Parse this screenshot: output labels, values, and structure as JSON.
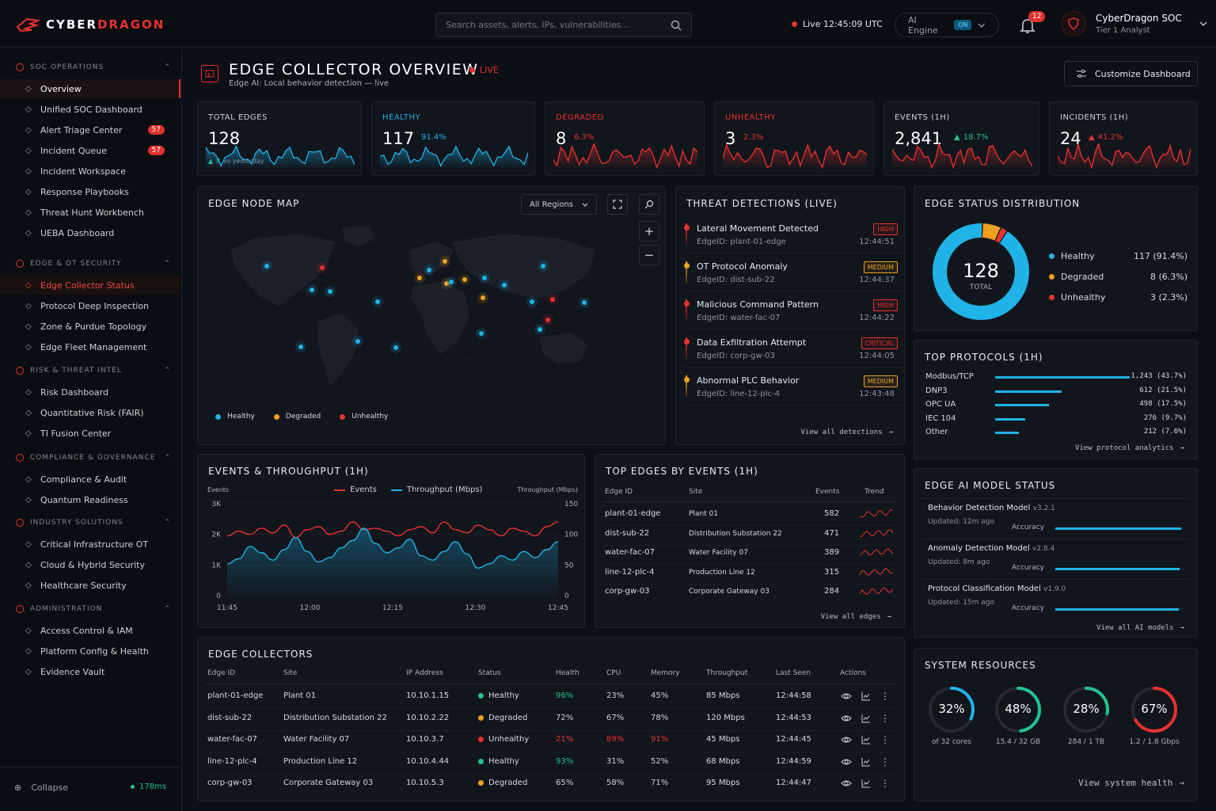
{
  "app": {
    "brand_a": "CYBER",
    "brand_b": "DRAGON"
  },
  "header": {
    "search_placeholder": "Search assets, alerts, IPs, vulnerabilities...",
    "live_clock": "Live 12:45:09 UTC",
    "ai_engine": "AI Engine",
    "ai_chip": "ON",
    "notifications": "12",
    "user_name": "CyberDragon SOC",
    "user_role": "Tier 1 Analyst"
  },
  "sidebar": {
    "sections": [
      {
        "title": "SOC OPERATIONS",
        "items": [
          {
            "label": "Overview",
            "icon": "target-icon"
          },
          {
            "label": "Unified SOC Dashboard",
            "icon": "grid-icon"
          },
          {
            "label": "Alert Triage Center",
            "icon": "alert-icon",
            "badge": "57"
          },
          {
            "label": "Incident Queue",
            "icon": "queue-icon",
            "badge": "57"
          },
          {
            "label": "Incident Workspace",
            "icon": "folder-icon"
          },
          {
            "label": "Response Playbooks",
            "icon": "play-icon"
          },
          {
            "label": "Threat Hunt Workbench",
            "icon": "crosshair-icon"
          },
          {
            "label": "UEBA Dashboard",
            "icon": "user-icon"
          }
        ]
      },
      {
        "title": "EDGE & OT SECURITY",
        "items": [
          {
            "label": "Edge Collector Status",
            "icon": "nodes-icon"
          },
          {
            "label": "Protocol Deep Inspection",
            "icon": "inspect-icon"
          },
          {
            "label": "Zone & Purdue Topology",
            "icon": "topology-icon"
          },
          {
            "label": "Edge Fleet Management",
            "icon": "fleet-icon"
          }
        ]
      },
      {
        "title": "RISK & THREAT INTEL",
        "items": [
          {
            "label": "Risk Dashboard",
            "icon": "chart-icon"
          },
          {
            "label": "Quantitative Risk (FAIR)",
            "icon": "calc-icon"
          },
          {
            "label": "TI Fusion Center",
            "icon": "fusion-icon"
          }
        ]
      },
      {
        "title": "COMPLIANCE & GOVERNANCE",
        "items": [
          {
            "label": "Compliance & Audit",
            "icon": "clipboard-icon"
          },
          {
            "label": "Quantum Readiness",
            "icon": "atom-icon"
          }
        ]
      },
      {
        "title": "INDUSTRY SOLUTIONS",
        "items": [
          {
            "label": "Critical Infrastructure OT",
            "icon": "factory-icon"
          },
          {
            "label": "Cloud & Hybrid Security",
            "icon": "cloud-icon"
          },
          {
            "label": "Healthcare Security",
            "icon": "heart-icon"
          }
        ]
      },
      {
        "title": "ADMINISTRATION",
        "items": [
          {
            "label": "Access Control & IAM",
            "icon": "key-icon"
          },
          {
            "label": "Platform Config & Health",
            "icon": "pulse-icon"
          },
          {
            "label": "Evidence Vault",
            "icon": "vault-icon"
          }
        ]
      }
    ],
    "collapse": "Collapse",
    "latency": "178ms"
  },
  "page": {
    "title": "EDGE COLLECTOR OVERVIEW",
    "live": "LIVE",
    "subtitle": "Edge AI: Local behavior detection — live",
    "customize": "Customize Dashboard"
  },
  "kpis": [
    {
      "label": "TOTAL EDGES",
      "value": "128",
      "change": "8",
      "note": "vs yesterday",
      "color": "#1fb3e8",
      "label_color": "#cbd1da"
    },
    {
      "label": "HEALTHY",
      "value": "117",
      "change": "91.4%",
      "color": "#1fb3e8",
      "label_color": "#1fb3e8"
    },
    {
      "label": "DEGRADED",
      "value": "8",
      "change": "6.3%",
      "color": "#e8322e",
      "label_color": "#e8322e"
    },
    {
      "label": "UNHEALTHY",
      "value": "3",
      "change": "2.3%",
      "color": "#e8322e",
      "label_color": "#e8322e"
    },
    {
      "label": "EVENTS (1H)",
      "value": "2,841",
      "change": "18.7%",
      "color": "#e8322e",
      "label_color": "#cbd1da",
      "up_color": "#22c38e"
    },
    {
      "label": "INCIDENTS (1H)",
      "value": "24",
      "change": "41.2%",
      "color": "#e8322e",
      "label_color": "#cbd1da",
      "up_color": "#e8322e"
    }
  ],
  "map": {
    "title": "EDGE NODE MAP",
    "region": "All Regions",
    "legend": [
      "Healthy",
      "Degraded",
      "Unhealthy"
    ]
  },
  "threats": {
    "title": "THREAT DETECTIONS (LIVE)",
    "items": [
      {
        "title": "Lateral Movement Detected",
        "edge": "EdgeID: plant-01-edge",
        "time": "12:44:51",
        "sev": "HIGH",
        "color": "#e8322e"
      },
      {
        "title": "OT Protocol Anomaly",
        "edge": "EdgeID: dist-sub-22",
        "time": "12:44:37",
        "sev": "MEDIUM",
        "color": "#f0a020"
      },
      {
        "title": "Malicious Command Pattern",
        "edge": "EdgeID: water-fac-07",
        "time": "12:44:22",
        "sev": "HIGH",
        "color": "#e8322e"
      },
      {
        "title": "Data Exfiltration Attempt",
        "edge": "EdgeID: corp-gw-03",
        "time": "12:44:05",
        "sev": "CRITICAL",
        "color": "#e8322e"
      },
      {
        "title": "Abnormal PLC Behavior",
        "edge": "EdgeID: line-12-plc-4",
        "time": "12:43:48",
        "sev": "MEDIUM",
        "color": "#f0a020"
      }
    ],
    "link": "View all detections"
  },
  "distribution": {
    "title": "EDGE STATUS DISTRIBUTION",
    "total": "128",
    "total_label": "TOTAL",
    "items": [
      {
        "label": "Healthy",
        "value": "117 (91.4%)",
        "color": "#1fb3e8"
      },
      {
        "label": "Degraded",
        "value": "8 (6.3%)",
        "color": "#f0a020"
      },
      {
        "label": "Unhealthy",
        "value": "3 (2.3%)",
        "color": "#e8322e"
      }
    ]
  },
  "protocols": {
    "title": "TOP PROTOCOLS (1H)",
    "items": [
      {
        "label": "Modbus/TCP",
        "value": "1,243 (43.7%)",
        "pct": 43.7
      },
      {
        "label": "DNP3",
        "value": "612 (21.5%)",
        "pct": 21.5
      },
      {
        "label": "OPC UA",
        "value": "498 (17.5%)",
        "pct": 17.5
      },
      {
        "label": "IEC 104",
        "value": "276 (9.7%)",
        "pct": 9.7
      },
      {
        "label": "Other",
        "value": "212 (7.6%)",
        "pct": 7.6
      }
    ],
    "link": "View protocol analytics"
  },
  "events_chart": {
    "title": "EVENTS & THROUGHPUT (1H)",
    "left_axis_label": "Events",
    "right_axis_label": "Throughput (Mbps)",
    "legend_events": "Events",
    "legend_throughput": "Throughput (Mbps)"
  },
  "chart_data": {
    "type": "line",
    "title": "EVENTS & THROUGHPUT (1H)",
    "x_ticks": [
      "11:45",
      "12:00",
      "12:15",
      "12:30",
      "12:45"
    ],
    "y_left_ticks": [
      "0",
      "1K",
      "2K",
      "3K"
    ],
    "y_right_ticks": [
      "0",
      "50",
      "100",
      "150"
    ],
    "ylim_left": [
      0,
      3000
    ],
    "ylim_right": [
      0,
      150
    ],
    "series": [
      {
        "name": "Events",
        "axis": "left",
        "color": "#e8322e",
        "values": [
          1950,
          2100,
          2000,
          2200,
          2050,
          2300,
          1900,
          2150,
          2250,
          2000,
          2100,
          2400,
          2150,
          2200,
          2100,
          1950,
          2150,
          2250,
          2050,
          2400,
          2150,
          2050,
          2300,
          2150,
          1950,
          2200,
          2100,
          1950,
          2250,
          2400
        ]
      },
      {
        "name": "Throughput (Mbps)",
        "axis": "right",
        "color": "#1fb3e8",
        "values": [
          52,
          60,
          80,
          70,
          58,
          75,
          95,
          72,
          55,
          62,
          78,
          90,
          110,
          85,
          70,
          78,
          92,
          65,
          58,
          72,
          88,
          68,
          45,
          52,
          65,
          58,
          72,
          62,
          75,
          88
        ]
      }
    ]
  },
  "top_edges": {
    "title": "TOP EDGES BY EVENTS (1H)",
    "headers": [
      "Edge ID",
      "Site",
      "Events",
      "Trend"
    ],
    "rows": [
      {
        "id": "plant-01-edge",
        "site": "Plant 01",
        "events": "582"
      },
      {
        "id": "dist-sub-22",
        "site": "Distribution Substation 22",
        "events": "471"
      },
      {
        "id": "water-fac-07",
        "site": "Water Facility 07",
        "events": "389"
      },
      {
        "id": "line-12-plc-4",
        "site": "Production Line 12",
        "events": "315"
      },
      {
        "id": "corp-gw-03",
        "site": "Corporate Gateway 03",
        "events": "284"
      }
    ],
    "link": "View all edges"
  },
  "ai_models": {
    "title": "EDGE AI MODEL STATUS",
    "items": [
      {
        "name": "Behavior Detection Model",
        "version": "v3.2.1",
        "updated": "Updated: 12m ago",
        "accuracy_label": "Accuracy"
      },
      {
        "name": "Anomaly Detection Model",
        "version": "v2.8.4",
        "updated": "Updated: 8m ago",
        "accuracy_label": "Accuracy"
      },
      {
        "name": "Protocol Classification Model",
        "version": "v1.9.0",
        "updated": "Updated: 15m ago",
        "accuracy_label": "Accuracy"
      }
    ],
    "link": "View all AI models"
  },
  "collectors": {
    "title": "EDGE COLLECTORS",
    "headers": [
      "Edge ID",
      "Site",
      "IP Address",
      "Status",
      "Health",
      "CPU",
      "Memory",
      "Throughput",
      "Last Seen",
      "Actions"
    ],
    "rows": [
      {
        "id": "plant-01-edge",
        "site": "Plant 01",
        "ip": "10.10.1.15",
        "status": "Healthy",
        "status_color": "#22c38e",
        "health": "96%",
        "health_color": "#22c38e",
        "cpu": "23%",
        "cpu_color": "#cbd1da",
        "mem": "45%",
        "mem_color": "#cbd1da",
        "tp": "85 Mbps",
        "seen": "12:44:58"
      },
      {
        "id": "dist-sub-22",
        "site": "Distribution Substation 22",
        "ip": "10.10.2.22",
        "status": "Degraded",
        "status_color": "#f0a020",
        "health": "72%",
        "health_color": "#cbd1da",
        "cpu": "67%",
        "cpu_color": "#cbd1da",
        "mem": "78%",
        "mem_color": "#cbd1da",
        "tp": "120 Mbps",
        "seen": "12:44:53"
      },
      {
        "id": "water-fac-07",
        "site": "Water Facility 07",
        "ip": "10.10.3.7",
        "status": "Unhealthy",
        "status_color": "#e8322e",
        "health": "21%",
        "health_color": "#e8322e",
        "cpu": "89%",
        "cpu_color": "#e8322e",
        "mem": "91%",
        "mem_color": "#e8322e",
        "tp": "45 Mbps",
        "seen": "12:44:45"
      },
      {
        "id": "line-12-plc-4",
        "site": "Production Line 12",
        "ip": "10.10.4.44",
        "status": "Healthy",
        "status_color": "#22c38e",
        "health": "93%",
        "health_color": "#22c38e",
        "cpu": "31%",
        "cpu_color": "#cbd1da",
        "mem": "52%",
        "mem_color": "#cbd1da",
        "tp": "68 Mbps",
        "seen": "12:44:59"
      },
      {
        "id": "corp-gw-03",
        "site": "Corporate Gateway 03",
        "ip": "10.10.5.3",
        "status": "Degraded",
        "status_color": "#f0a020",
        "health": "65%",
        "health_color": "#cbd1da",
        "cpu": "58%",
        "cpu_color": "#cbd1da",
        "mem": "71%",
        "mem_color": "#cbd1da",
        "tp": "95 Mbps",
        "seen": "12:44:47"
      }
    ]
  },
  "resources": {
    "title": "SYSTEM RESOURCES",
    "items": [
      {
        "value": "32%",
        "pct": 32,
        "sub": "of 32 cores",
        "color": "#1fb3e8"
      },
      {
        "value": "48%",
        "pct": 48,
        "sub": "15.4 / 32 GB",
        "color": "#22c38e"
      },
      {
        "value": "28%",
        "pct": 28,
        "sub": "284 / 1 TB",
        "color": "#22c38e"
      },
      {
        "value": "67%",
        "pct": 67,
        "sub": "1.2 / 1.8 Gbps",
        "color": "#e8322e"
      }
    ],
    "link": "View system health"
  }
}
